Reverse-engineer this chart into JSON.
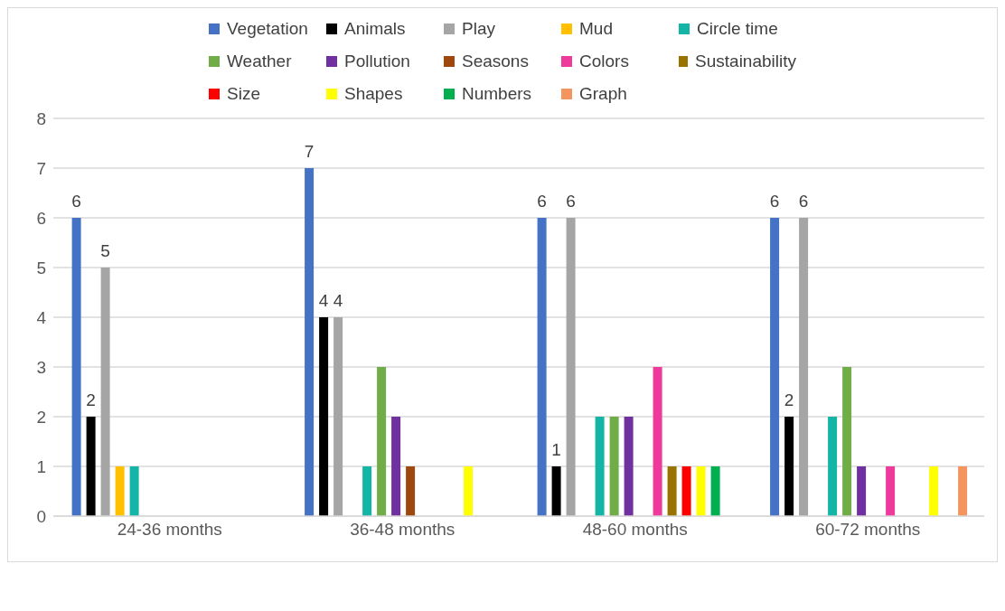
{
  "chart_data": {
    "type": "bar",
    "categories": [
      "24-36 months",
      "36-48 months",
      "48-60 months",
      "60-72 months"
    ],
    "series": [
      {
        "name": "Vegetation",
        "color": "#4472c4",
        "values": [
          6,
          7,
          6,
          6
        ],
        "value_labels": [
          "6",
          "7",
          "6",
          "6"
        ]
      },
      {
        "name": "Animals",
        "color": "#000000",
        "values": [
          2,
          4,
          1,
          2
        ],
        "value_labels": [
          "2",
          "4",
          "1",
          "2"
        ]
      },
      {
        "name": "Play",
        "color": "#a5a5a5",
        "values": [
          5,
          4,
          6,
          6
        ],
        "value_labels": [
          "5",
          "4",
          "6",
          "6"
        ]
      },
      {
        "name": "Mud",
        "color": "#ffc000",
        "values": [
          1,
          0,
          0,
          0
        ]
      },
      {
        "name": "Circle time",
        "color": "#13b5a7",
        "values": [
          1,
          1,
          2,
          2
        ]
      },
      {
        "name": "Weather",
        "color": "#70ad47",
        "values": [
          0,
          3,
          2,
          3
        ]
      },
      {
        "name": "Pollution",
        "color": "#7030a0",
        "values": [
          0,
          2,
          2,
          1
        ]
      },
      {
        "name": "Seasons",
        "color": "#9e480e",
        "values": [
          0,
          1,
          0,
          0
        ]
      },
      {
        "name": "Colors",
        "color": "#ee3a9a",
        "values": [
          0,
          0,
          3,
          1
        ]
      },
      {
        "name": "Sustainability",
        "color": "#997300",
        "values": [
          0,
          0,
          1,
          0
        ]
      },
      {
        "name": "Size",
        "color": "#ff0000",
        "values": [
          0,
          0,
          1,
          0
        ]
      },
      {
        "name": "Shapes",
        "color": "#ffff00",
        "values": [
          0,
          1,
          1,
          1
        ]
      },
      {
        "name": "Numbers",
        "color": "#00b050",
        "values": [
          0,
          0,
          1,
          0
        ]
      },
      {
        "name": "Graph",
        "color": "#f4955f",
        "values": [
          0,
          0,
          0,
          1
        ]
      }
    ],
    "ylim": [
      0,
      8
    ],
    "yticks": [
      0,
      1,
      2,
      3,
      4,
      5,
      6,
      7,
      8
    ],
    "grid": "y",
    "legend": "top"
  }
}
